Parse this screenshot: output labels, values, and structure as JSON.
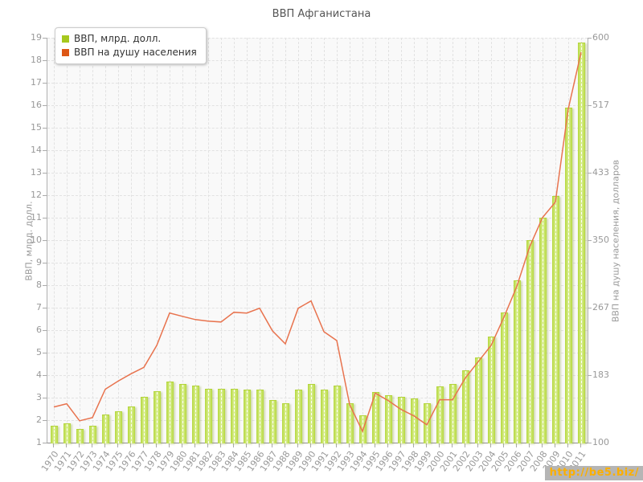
{
  "title": "ВВП Афганистана",
  "legend": [
    {
      "label": "ВВП, млрд. долл.",
      "color": "#a6c81e"
    },
    {
      "label": "ВВП на душу населения",
      "color": "#dd5715"
    }
  ],
  "watermark": {
    "text": "http://be5.biz/",
    "text_color": "#fbaf00",
    "background": "#b5b5b5"
  },
  "colors": {
    "bar_fill": "#c3e35c",
    "bar_edge": "#b5d83c",
    "line": "#e8734e",
    "grid": "#e2e2e2",
    "plot_background": "#f9f9f9",
    "axis_text": "#999999",
    "title_text": "#555555"
  },
  "chart_data": {
    "type": "bar+line",
    "title": "ВВП Афганистана",
    "categories": [
      "1970",
      "1971",
      "1972",
      "1973",
      "1974",
      "1975",
      "1976",
      "1977",
      "1978",
      "1979",
      "1980",
      "1981",
      "1982",
      "1983",
      "1984",
      "1985",
      "1986",
      "1987",
      "1988",
      "1989",
      "1990",
      "1991",
      "1992",
      "1993",
      "1994",
      "1995",
      "1996",
      "1997",
      "1998",
      "1999",
      "2000",
      "2001",
      "2002",
      "2003",
      "2004",
      "2005",
      "2006",
      "2007",
      "2008",
      "2009",
      "2010",
      "2011"
    ],
    "series": [
      {
        "name": "ВВП, млрд. долл.",
        "type": "bar",
        "axis": "left",
        "color": "#c3e35c",
        "values": [
          1.75,
          1.85,
          1.6,
          1.75,
          2.25,
          2.4,
          2.6,
          3.05,
          3.3,
          3.7,
          3.6,
          3.55,
          3.4,
          3.4,
          3.4,
          3.35,
          3.35,
          2.9,
          2.75,
          3.35,
          3.6,
          3.35,
          3.55,
          2.75,
          2.2,
          3.25,
          3.1,
          3.05,
          2.95,
          2.75,
          3.5,
          3.6,
          4.2,
          4.8,
          5.7,
          6.8,
          8.2,
          10.0,
          11.0,
          11.95,
          15.9,
          18.8
        ]
      },
      {
        "name": "ВВП на душу населения",
        "type": "line",
        "axis": "right",
        "color": "#e8734e",
        "values": [
          144,
          148,
          127,
          131,
          166,
          176,
          185,
          193,
          220,
          260,
          256,
          252,
          250,
          249,
          261,
          260,
          266,
          238,
          222,
          266,
          275,
          237,
          226,
          147,
          114,
          161,
          152,
          141,
          133,
          122,
          153,
          153,
          180,
          200,
          220,
          255,
          293,
          342,
          378,
          397,
          512,
          582
        ]
      }
    ],
    "left_axis": {
      "label": "ВВП, млрд. долл.",
      "min": 1,
      "max": 19,
      "tick_step": 1
    },
    "right_axis": {
      "label": "ВВП на душу населения, долларов",
      "min": 100,
      "max": 600,
      "ticks": [
        100,
        183,
        267,
        350,
        433,
        517,
        600
      ]
    },
    "grid": "dashed"
  }
}
